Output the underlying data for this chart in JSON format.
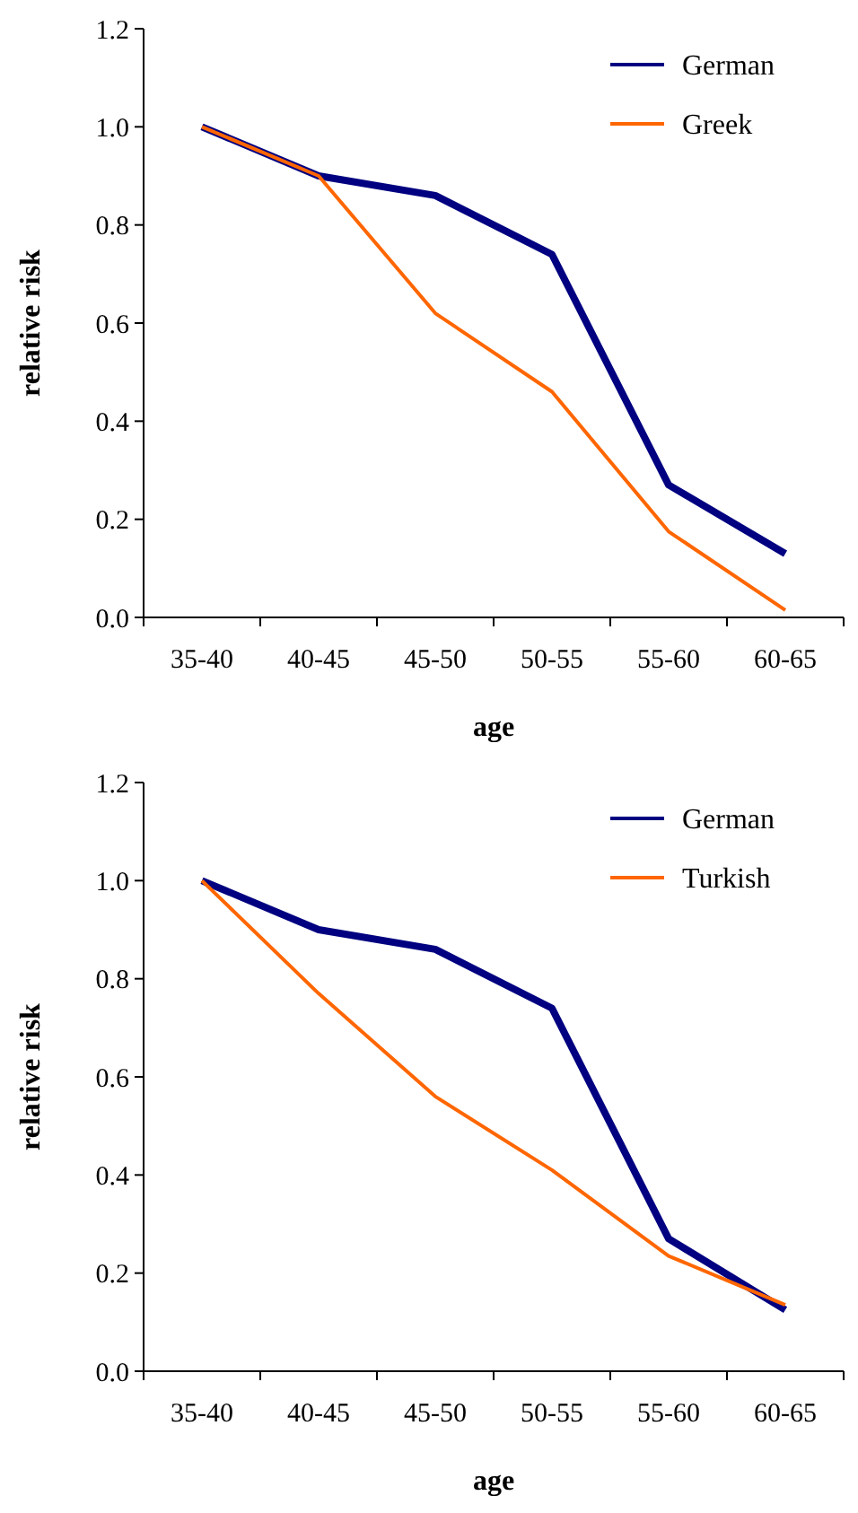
{
  "chart_data": [
    {
      "type": "line",
      "xlabel": "age",
      "ylabel": "relative risk",
      "categories": [
        "35-40",
        "40-45",
        "45-50",
        "50-55",
        "55-60",
        "60-65"
      ],
      "series": [
        {
          "name": "German",
          "color": "#000080",
          "values": [
            1.0,
            0.9,
            0.86,
            0.74,
            0.27,
            0.13
          ]
        },
        {
          "name": "Greek",
          "color": "#ff6600",
          "values": [
            1.0,
            0.9,
            0.62,
            0.46,
            0.175,
            0.015
          ]
        }
      ],
      "ylim": [
        0,
        1.2
      ],
      "yticks": [
        {
          "value": 0,
          "label": "0.0"
        },
        {
          "value": 0.2,
          "label": "0.2"
        },
        {
          "value": 0.4,
          "label": "0.4"
        },
        {
          "value": 0.6,
          "label": "0.6"
        },
        {
          "value": 0.8,
          "label": "0.8"
        },
        {
          "value": 1,
          "label": "1.0"
        },
        {
          "value": 1.2,
          "label": "1.2"
        }
      ],
      "grid": false,
      "legend": "top right",
      "marker": "none",
      "line_style": "solid"
    },
    {
      "type": "line",
      "xlabel": "age",
      "ylabel": "relative risk",
      "categories": [
        "35-40",
        "40-45",
        "45-50",
        "50-55",
        "55-60",
        "60-65"
      ],
      "series": [
        {
          "name": "German",
          "color": "#000080",
          "values": [
            1.0,
            0.9,
            0.86,
            0.74,
            0.27,
            0.125
          ]
        },
        {
          "name": "Turkish",
          "color": "#ff6600",
          "values": [
            1.0,
            0.77,
            0.56,
            0.41,
            0.235,
            0.135
          ]
        }
      ],
      "ylim": [
        0,
        1.2
      ],
      "yticks": [
        {
          "value": 0,
          "label": "0.0"
        },
        {
          "value": 0.2,
          "label": "0.2"
        },
        {
          "value": 0.4,
          "label": "0.4"
        },
        {
          "value": 0.6,
          "label": "0.6"
        },
        {
          "value": 0.8,
          "label": "0.8"
        },
        {
          "value": 1,
          "label": "1.0"
        },
        {
          "value": 1.2,
          "label": "1.2"
        }
      ],
      "grid": false,
      "legend": "top right",
      "marker": "none",
      "line_style": "solid"
    }
  ]
}
